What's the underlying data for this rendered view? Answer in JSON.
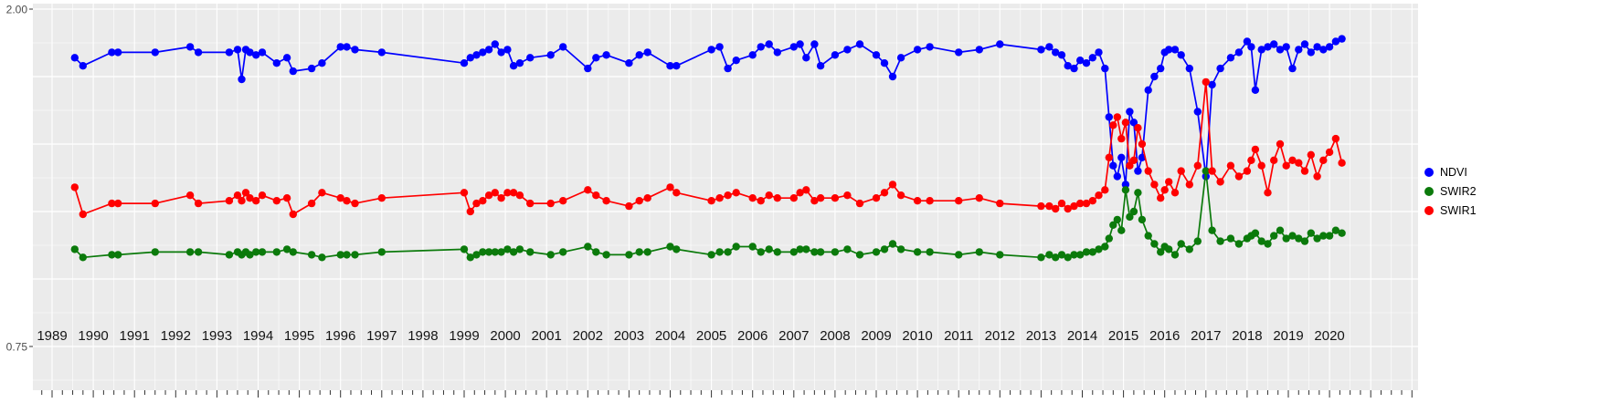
{
  "figure": {
    "background": "#FFFFFF",
    "panel_background": "#EBEBEB",
    "grid_color": "#FFFFFF",
    "axis_label_color": "#4D4D4D",
    "x_tick_label_color": "#141414",
    "tick_mark_color": "#333333"
  },
  "legend": {
    "position": "right",
    "items": [
      {
        "label": "NDVI",
        "color": "#0000FF"
      },
      {
        "label": "SWIR2",
        "color": "#0B7A0B"
      },
      {
        "label": "SWIR1",
        "color": "#FF0000"
      }
    ]
  },
  "chart_data": {
    "type": "line",
    "title": "",
    "xlabel": "",
    "ylabel": "",
    "grid": true,
    "legend_position": "right",
    "ylim": [
      0.75,
      2.0
    ],
    "xlim": [
      1988.5,
      2021.1
    ],
    "y_tick_labels_visible": [
      "2.00",
      "0.75"
    ],
    "y_tick_values_visible": [
      2.0,
      0.75
    ],
    "x_tick_labels": [
      "1989",
      "1990",
      "1991",
      "1992",
      "1993",
      "1994",
      "1995",
      "1996",
      "1997",
      "1998",
      "1999",
      "2000",
      "2001",
      "2002",
      "2003",
      "2004",
      "2005",
      "2006",
      "2007",
      "2008",
      "2009",
      "2010",
      "2011",
      "2012",
      "2013",
      "2014",
      "2015",
      "2016",
      "2017",
      "2018",
      "2019",
      "2020"
    ],
    "x_minor_tick_interval_years": 0.25,
    "x": [
      1989.55,
      1989.75,
      1990.45,
      1990.6,
      1991.5,
      1992.35,
      1992.55,
      1993.3,
      1993.5,
      1993.6,
      1993.7,
      1993.8,
      1993.95,
      1994.1,
      1994.45,
      1994.7,
      1994.85,
      1995.3,
      1995.55,
      1996.0,
      1996.15,
      1996.35,
      1997.0,
      1999.0,
      1999.15,
      1999.3,
      1999.45,
      1999.6,
      1999.75,
      1999.9,
      2000.05,
      2000.2,
      2000.35,
      2000.6,
      2001.1,
      2001.4,
      2002.0,
      2002.2,
      2002.45,
      2003.0,
      2003.25,
      2003.45,
      2004.0,
      2004.15,
      2005.0,
      2005.2,
      2005.4,
      2005.6,
      2006.0,
      2006.2,
      2006.4,
      2006.6,
      2007.0,
      2007.15,
      2007.3,
      2007.5,
      2007.65,
      2008.0,
      2008.3,
      2008.6,
      2009.0,
      2009.2,
      2009.4,
      2009.6,
      2010.0,
      2010.3,
      2011.0,
      2011.5,
      2012.0,
      2013.0,
      2013.2,
      2013.35,
      2013.5,
      2013.65,
      2013.8,
      2013.95,
      2014.1,
      2014.25,
      2014.4,
      2014.55,
      2014.65,
      2014.75,
      2014.85,
      2014.95,
      2015.05,
      2015.15,
      2015.25,
      2015.35,
      2015.45,
      2015.6,
      2015.75,
      2015.9,
      2016.0,
      2016.1,
      2016.25,
      2016.4,
      2016.6,
      2016.8,
      2017.0,
      2017.15,
      2017.35,
      2017.6,
      2017.8,
      2018.0,
      2018.1,
      2018.2,
      2018.35,
      2018.5,
      2018.65,
      2018.8,
      2018.95,
      2019.1,
      2019.25,
      2019.4,
      2019.55,
      2019.7,
      2019.85,
      2020.0,
      2020.15,
      2020.3
    ],
    "series": [
      {
        "name": "NDVI",
        "color": "#0000FF",
        "values": [
          1.82,
          1.79,
          1.84,
          1.84,
          1.84,
          1.86,
          1.84,
          1.84,
          1.85,
          1.74,
          1.85,
          1.84,
          1.83,
          1.84,
          1.8,
          1.82,
          1.77,
          1.78,
          1.8,
          1.86,
          1.86,
          1.85,
          1.84,
          1.8,
          1.82,
          1.83,
          1.84,
          1.85,
          1.87,
          1.84,
          1.85,
          1.79,
          1.8,
          1.82,
          1.83,
          1.86,
          1.78,
          1.82,
          1.83,
          1.8,
          1.83,
          1.84,
          1.79,
          1.79,
          1.85,
          1.86,
          1.78,
          1.81,
          1.83,
          1.86,
          1.87,
          1.84,
          1.86,
          1.87,
          1.82,
          1.87,
          1.79,
          1.83,
          1.85,
          1.87,
          1.83,
          1.8,
          1.75,
          1.82,
          1.85,
          1.86,
          1.84,
          1.85,
          1.87,
          1.85,
          1.86,
          1.84,
          1.83,
          1.79,
          1.78,
          1.81,
          1.8,
          1.82,
          1.84,
          1.78,
          1.6,
          1.42,
          1.38,
          1.45,
          1.35,
          1.62,
          1.58,
          1.4,
          1.45,
          1.7,
          1.75,
          1.78,
          1.84,
          1.85,
          1.85,
          1.83,
          1.78,
          1.62,
          1.38,
          1.72,
          1.78,
          1.82,
          1.84,
          1.88,
          1.86,
          1.7,
          1.85,
          1.86,
          1.87,
          1.85,
          1.86,
          1.78,
          1.85,
          1.87,
          1.84,
          1.86,
          1.85,
          1.86,
          1.88,
          1.89
        ]
      },
      {
        "name": "SWIR2",
        "color": "#0B7A0B",
        "values": [
          1.11,
          1.08,
          1.09,
          1.09,
          1.1,
          1.1,
          1.1,
          1.09,
          1.1,
          1.09,
          1.1,
          1.09,
          1.1,
          1.1,
          1.1,
          1.11,
          1.1,
          1.09,
          1.08,
          1.09,
          1.09,
          1.09,
          1.1,
          1.11,
          1.08,
          1.09,
          1.1,
          1.1,
          1.1,
          1.1,
          1.11,
          1.1,
          1.11,
          1.1,
          1.09,
          1.1,
          1.12,
          1.1,
          1.09,
          1.09,
          1.1,
          1.1,
          1.12,
          1.11,
          1.09,
          1.1,
          1.1,
          1.12,
          1.12,
          1.1,
          1.11,
          1.1,
          1.1,
          1.11,
          1.11,
          1.1,
          1.1,
          1.1,
          1.11,
          1.09,
          1.1,
          1.11,
          1.13,
          1.11,
          1.1,
          1.1,
          1.09,
          1.1,
          1.09,
          1.08,
          1.09,
          1.08,
          1.09,
          1.08,
          1.09,
          1.09,
          1.1,
          1.1,
          1.11,
          1.12,
          1.15,
          1.2,
          1.22,
          1.18,
          1.33,
          1.23,
          1.25,
          1.32,
          1.22,
          1.16,
          1.13,
          1.1,
          1.12,
          1.11,
          1.09,
          1.13,
          1.11,
          1.14,
          1.4,
          1.18,
          1.14,
          1.15,
          1.13,
          1.15,
          1.16,
          1.17,
          1.14,
          1.13,
          1.16,
          1.18,
          1.15,
          1.16,
          1.15,
          1.14,
          1.17,
          1.15,
          1.16,
          1.16,
          1.18,
          1.17
        ]
      },
      {
        "name": "SWIR1",
        "color": "#FF0000",
        "values": [
          1.34,
          1.24,
          1.28,
          1.28,
          1.28,
          1.31,
          1.28,
          1.29,
          1.31,
          1.29,
          1.32,
          1.3,
          1.29,
          1.31,
          1.29,
          1.3,
          1.24,
          1.28,
          1.32,
          1.3,
          1.29,
          1.28,
          1.3,
          1.32,
          1.25,
          1.28,
          1.29,
          1.31,
          1.32,
          1.3,
          1.32,
          1.32,
          1.31,
          1.28,
          1.28,
          1.29,
          1.33,
          1.31,
          1.29,
          1.27,
          1.29,
          1.3,
          1.34,
          1.32,
          1.29,
          1.3,
          1.31,
          1.32,
          1.3,
          1.29,
          1.31,
          1.3,
          1.3,
          1.32,
          1.33,
          1.29,
          1.3,
          1.3,
          1.31,
          1.28,
          1.3,
          1.32,
          1.35,
          1.31,
          1.29,
          1.29,
          1.29,
          1.3,
          1.28,
          1.27,
          1.27,
          1.26,
          1.28,
          1.26,
          1.27,
          1.28,
          1.28,
          1.29,
          1.31,
          1.33,
          1.45,
          1.57,
          1.6,
          1.52,
          1.58,
          1.42,
          1.44,
          1.56,
          1.5,
          1.4,
          1.35,
          1.3,
          1.33,
          1.36,
          1.32,
          1.4,
          1.35,
          1.42,
          1.73,
          1.4,
          1.36,
          1.42,
          1.38,
          1.4,
          1.44,
          1.48,
          1.42,
          1.32,
          1.44,
          1.5,
          1.42,
          1.44,
          1.43,
          1.4,
          1.46,
          1.38,
          1.44,
          1.47,
          1.52,
          1.43
        ]
      }
    ]
  }
}
